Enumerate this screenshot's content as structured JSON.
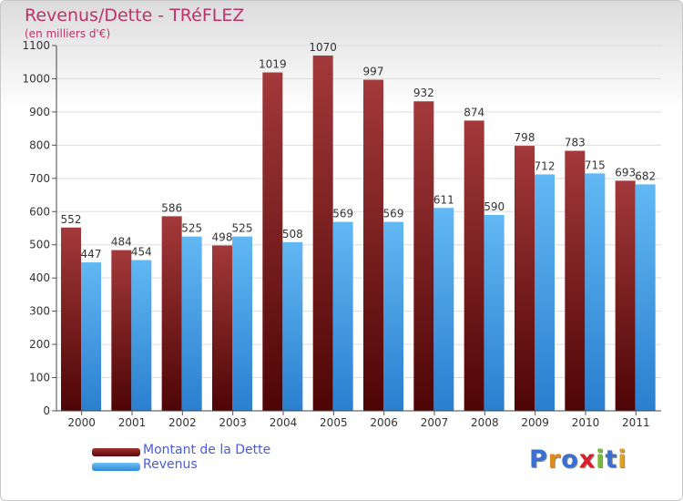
{
  "chart_data": {
    "type": "bar",
    "title": "Revenus/Dette - TRéFLEZ",
    "subtitle": "(en milliers d'€)",
    "categories": [
      "2000",
      "2001",
      "2002",
      "2003",
      "2004",
      "2005",
      "2006",
      "2007",
      "2008",
      "2009",
      "2010",
      "2011"
    ],
    "series": [
      {
        "name": "Montant de la Dette",
        "color": "#7a1a1c",
        "values": [
          552,
          484,
          586,
          498,
          1019,
          1070,
          997,
          932,
          874,
          798,
          783,
          693
        ]
      },
      {
        "name": "Revenus",
        "color": "#4aa3e6",
        "values": [
          447,
          454,
          525,
          525,
          508,
          569,
          569,
          611,
          590,
          712,
          715,
          682
        ]
      }
    ],
    "ylim": [
      0,
      1100
    ],
    "yticks": [
      0,
      100,
      200,
      300,
      400,
      500,
      600,
      700,
      800,
      900,
      1000,
      1100
    ],
    "grid": true,
    "legend_position": "bottom-left"
  },
  "logo": {
    "text": "Proxiti",
    "letter_colors": [
      "#3b6fd0",
      "#e08a1e",
      "#3b6fd0",
      "#d9202a",
      "#7ab83a",
      "#3b6fd0",
      "#e0a020"
    ]
  }
}
